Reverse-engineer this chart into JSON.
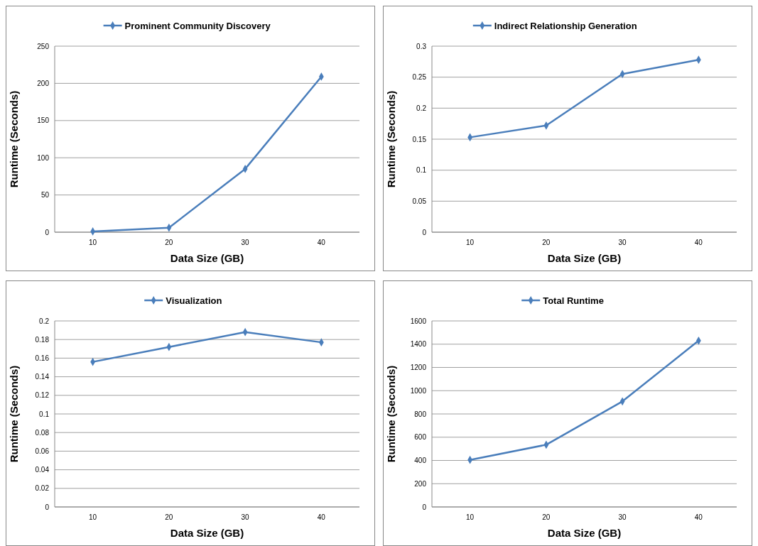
{
  "chart_data": [
    {
      "type": "line",
      "categories": [
        "10",
        "20",
        "30",
        "40"
      ],
      "series": [
        {
          "name": "Prominent Community Discovery",
          "color": "#4a7ebb",
          "values": [
            1,
            6,
            85,
            209
          ]
        }
      ],
      "xlabel": "Data Size (GB)",
      "ylabel": "Runtime (Seconds)",
      "ylim": [
        0,
        250
      ],
      "yticks": [
        0,
        50,
        100,
        150,
        200,
        250
      ],
      "grid": "y",
      "legend": "top",
      "marker": "diamond"
    },
    {
      "type": "line",
      "categories": [
        "10",
        "20",
        "30",
        "40"
      ],
      "series": [
        {
          "name": "Indirect Relationship Generation",
          "color": "#4a7ebb",
          "values": [
            0.153,
            0.172,
            0.255,
            0.278
          ]
        }
      ],
      "xlabel": "Data Size (GB)",
      "ylabel": "Runtime (Seconds)",
      "ylim": [
        0,
        0.3
      ],
      "yticks": [
        0,
        0.05,
        0.1,
        0.15,
        0.2,
        0.25,
        0.3
      ],
      "grid": "y",
      "legend": "top",
      "marker": "diamond"
    },
    {
      "type": "line",
      "categories": [
        "10",
        "20",
        "30",
        "40"
      ],
      "series": [
        {
          "name": "Visualization",
          "color": "#4a7ebb",
          "values": [
            0.156,
            0.172,
            0.188,
            0.177
          ]
        }
      ],
      "xlabel": "Data Size (GB)",
      "ylabel": "Runtime (Seconds)",
      "ylim": [
        0,
        0.2
      ],
      "yticks": [
        0,
        0.02,
        0.04,
        0.06,
        0.08,
        0.1,
        0.12,
        0.14,
        0.16,
        0.18,
        0.2
      ],
      "grid": "y",
      "legend": "top",
      "marker": "diamond"
    },
    {
      "type": "line",
      "categories": [
        "10",
        "20",
        "30",
        "40"
      ],
      "series": [
        {
          "name": "Total Runtime",
          "color": "#4a7ebb",
          "values": [
            405,
            535,
            908,
            1430
          ]
        }
      ],
      "xlabel": "Data Size (GB)",
      "ylabel": "Runtime (Seconds)",
      "ylim": [
        0,
        1600
      ],
      "yticks": [
        0,
        200,
        400,
        600,
        800,
        1000,
        1200,
        1400,
        1600
      ],
      "grid": "y",
      "legend": "top",
      "marker": "diamond"
    }
  ]
}
